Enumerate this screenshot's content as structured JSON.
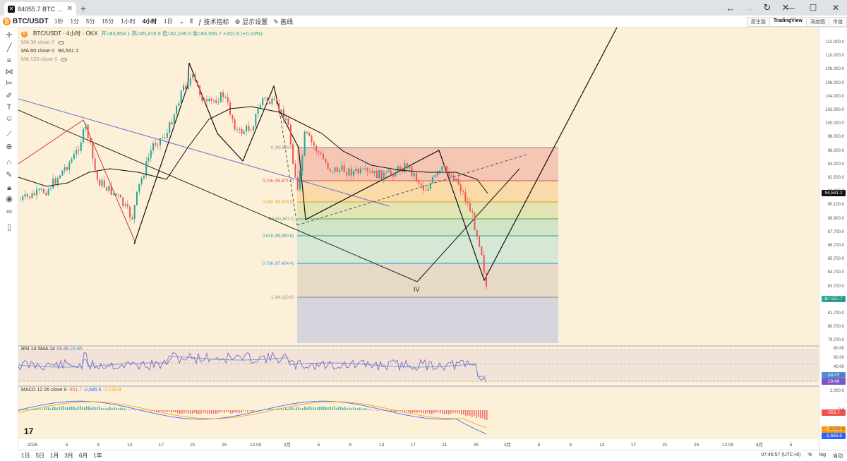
{
  "browser": {
    "tab_title": "84055.7 BTC USDT 现货交易 | ...",
    "new_tab": "+",
    "close": "✕",
    "win_min": "—",
    "win_max": "☐",
    "win_close": "✕"
  },
  "toolbar": {
    "symbol": "BTC/USDT",
    "intervals": [
      "1秒",
      "1分",
      "5分",
      "15分",
      "1小时",
      "4小时",
      "1日"
    ],
    "active_interval": "4小时",
    "indicators_label": "技术指标",
    "display_label": "显示设置",
    "draw_label": "画线",
    "views": [
      "原生版",
      "TradingView",
      "深度图",
      "市值"
    ],
    "active_view": "TradingView"
  },
  "legend": {
    "title": "BTC/USDT · 4小时 · OKX",
    "ohlc": "开=83,854.1 高=85,419.5 低=82,236.0 收=84,055.7 +201.6 (+0.24%)",
    "ma30": "MA 30 close 0",
    "ma60": "MA 60 close 0",
    "ma60_value": "94,541.1",
    "ma120": "MA 120 close 0"
  },
  "price_axis": {
    "ticks": [
      "112,000.0",
      "110,000.0",
      "108,000.0",
      "106,000.0",
      "104,000.0",
      "102,000.0",
      "100,000.0",
      "98,000.0",
      "96,000.0",
      "94,000.0",
      "92,500.0",
      "91,300.0",
      "90,100.0",
      "88,900.0",
      "87,700.0",
      "86,700.0",
      "85,700.0",
      "84,700.0",
      "83,700.0",
      "82,700.0",
      "81,700.0",
      "80,700.0",
      "79,700.0"
    ],
    "ma_tag": "94,541.1",
    "last_tag": "84,055.7"
  },
  "fib_levels": [
    {
      "label": "0 (99,500.0)",
      "color": "#888888"
    },
    {
      "label": "0.236 (95,871.1)",
      "color": "#e05252"
    },
    {
      "label": "0.382 (93,623.9)",
      "color": "#e0a020"
    },
    {
      "label": "0.5 (91,807.1)",
      "color": "#4caf50"
    },
    {
      "label": "0.618 (89,990.6)",
      "color": "#26a69a"
    },
    {
      "label": "0.786 (87,404.4)",
      "color": "#2196f3"
    },
    {
      "label": "1 (84,110.0)",
      "color": "#888888"
    }
  ],
  "wave_label": "IV",
  "rsi": {
    "legend": "RSI 14 SMA 14",
    "v1": "19.49",
    "v2": "24.85",
    "ticks": [
      "80.00",
      "60.00",
      "40.00",
      "20.00"
    ],
    "tag1": "24.85",
    "tag2": "19.49"
  },
  "macd": {
    "legend": "MACD 12 26 close 9",
    "v1": "-551.7",
    "v2": "-2,685.6",
    "v3": "-2,133.9",
    "ticks": [
      "2,000.0",
      "0.0",
      "-2,000.0"
    ],
    "tag1": "-551.7",
    "tag2": "-2,133.9",
    "tag3": "-2,685.6"
  },
  "time_axis": [
    "2025",
    "5",
    "9",
    "13",
    "17",
    "21",
    "25",
    "12:00",
    "2月",
    "5",
    "9",
    "13",
    "17",
    "21",
    "25",
    "3月",
    "5",
    "9",
    "13",
    "17",
    "21",
    "25",
    "12:00",
    "4月",
    "5",
    "9"
  ],
  "bottom": {
    "ranges": [
      "1日",
      "5日",
      "1月",
      "3月",
      "6月",
      "1年"
    ],
    "clock": "07:45:57 (UTC+8)",
    "percent": "%",
    "log": "log",
    "auto": "自动"
  },
  "colors": {
    "up": "#26a69a",
    "down": "#ef5350",
    "bg": "#fdf0d8",
    "accent": "#2962ff"
  }
}
